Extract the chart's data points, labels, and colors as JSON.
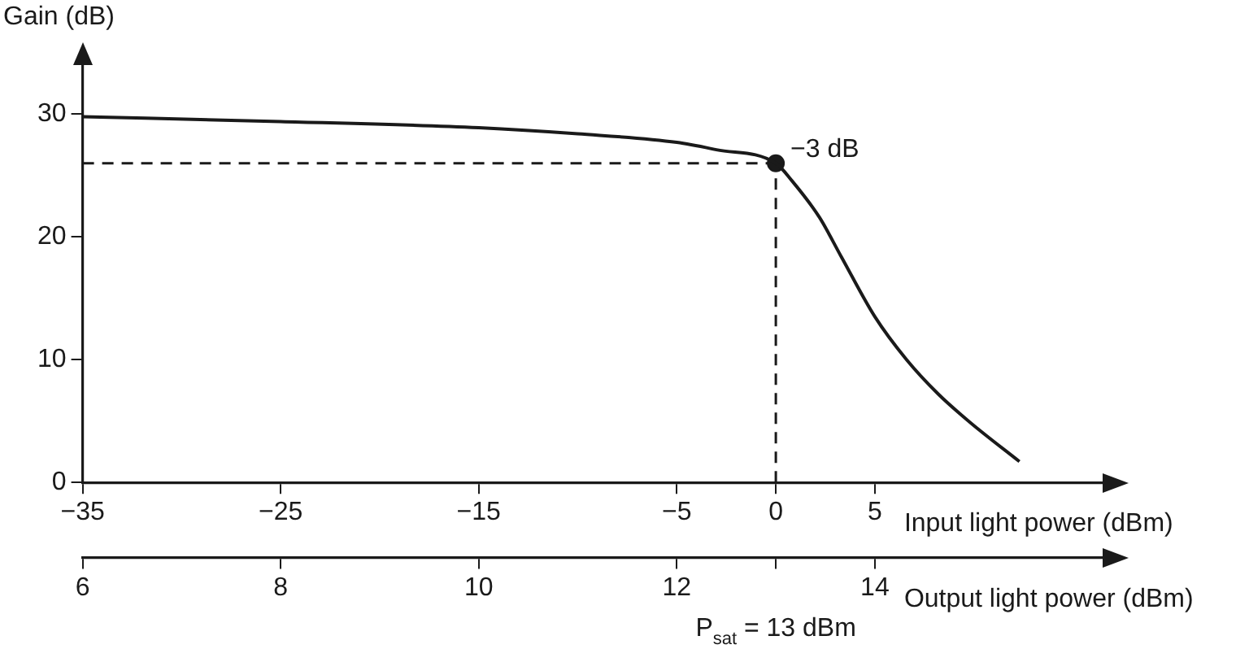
{
  "chart_data": {
    "type": "line",
    "ylabel": "Gain (dB)",
    "xlabel": "Input light power (dBm)",
    "x2label": "Output light power (dBm)",
    "xlim": [
      -35,
      16.5
    ],
    "xticks": [
      -35,
      -25,
      -15,
      -5,
      0,
      5
    ],
    "x2lim": [
      6,
      16.3
    ],
    "x2ticks": [
      6,
      8,
      10,
      12,
      {
        "value": 13,
        "label": null
      },
      14
    ],
    "ylim": [
      0,
      34
    ],
    "yticks": [
      0,
      10,
      20,
      30
    ],
    "grid": false,
    "legend": false,
    "marker": "none",
    "line_style": "solid",
    "series": [
      {
        "color": "#1a1a1a",
        "x": [
          -35,
          -25,
          -15,
          -10,
          -5,
          -3,
          0,
          0.8,
          2.2,
          3.3,
          5,
          6.6,
          8.2,
          9.8,
          12.3
        ],
        "values": [
          29.8,
          29.4,
          28.9,
          28.4,
          27.7,
          27.1,
          26.0,
          24.6,
          21.6,
          18.4,
          13.5,
          10.0,
          7.2,
          4.9,
          1.7
        ]
      },
      {
        "type": "scatter",
        "color": "#1a1a1a",
        "marker": "circle",
        "x": [
          0
        ],
        "values": [
          26.0
        ]
      }
    ],
    "ref_lines": [
      {
        "axis": "y",
        "value": 26.0,
        "line_style": "dashed",
        "color": "#1a1a1a"
      },
      {
        "axis": "x",
        "value": 0,
        "line_style": "dashed",
        "color": "#1a1a1a"
      }
    ],
    "annotations": [
      {
        "text": "−3 dB",
        "x": 0,
        "y": 26.0
      },
      "P$_{sat}$ = 13 dBm"
    ]
  }
}
